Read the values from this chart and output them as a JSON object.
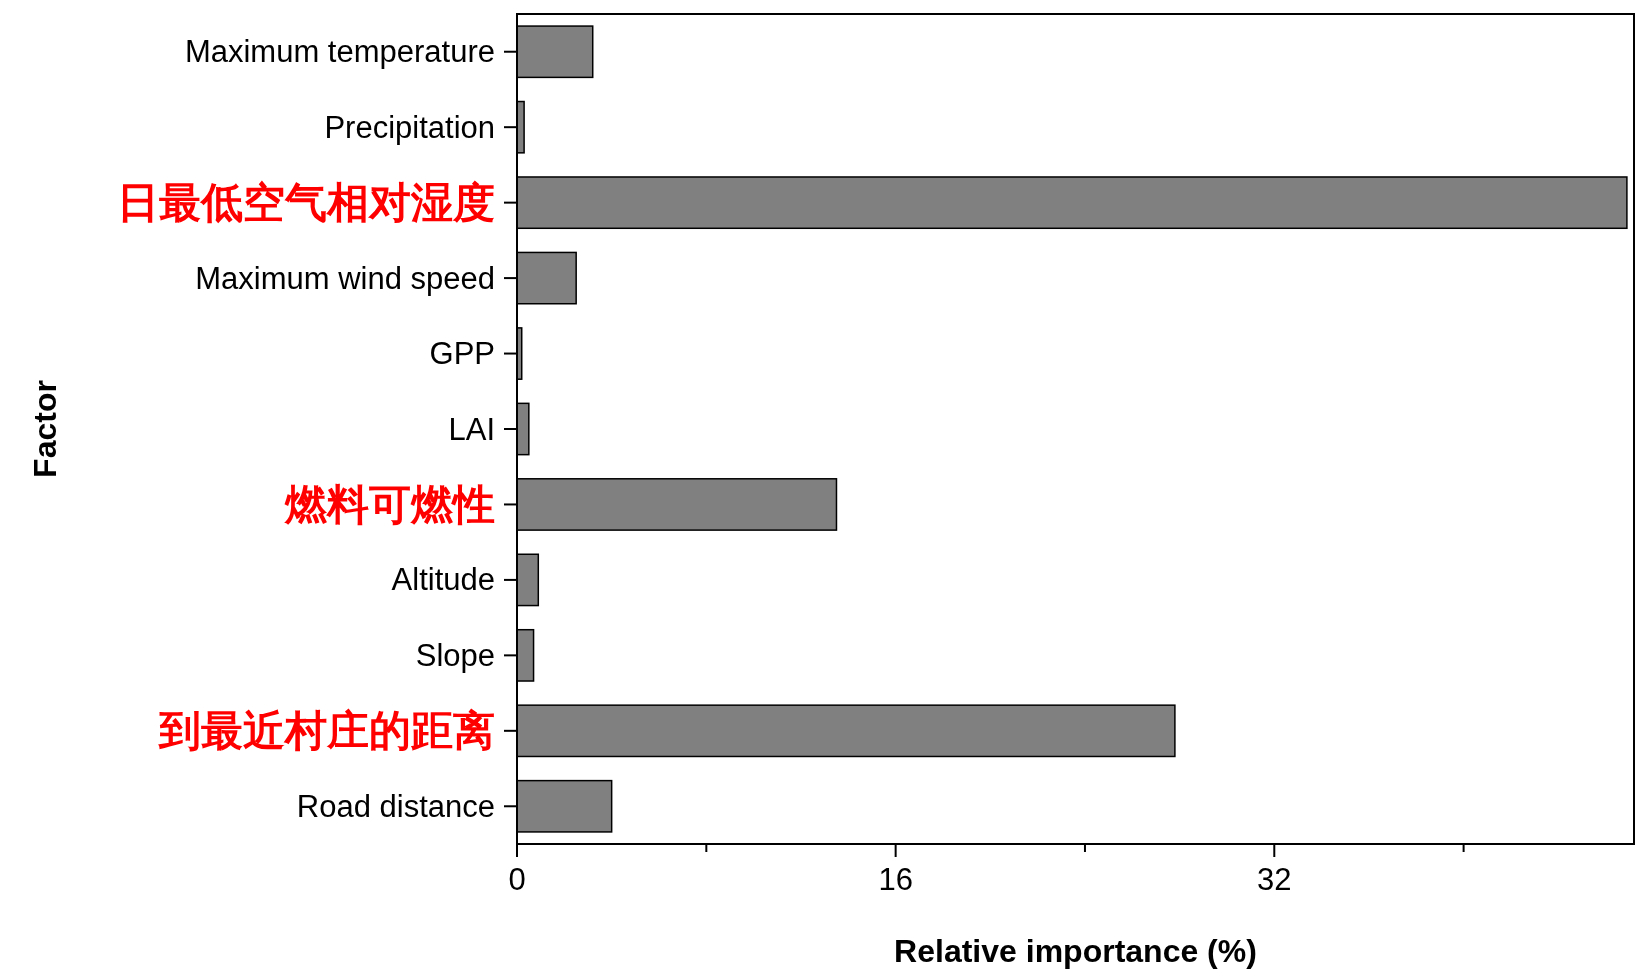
{
  "chart_data": {
    "type": "bar",
    "orientation": "horizontal",
    "xlabel": "Relative importance (%)",
    "ylabel": "Factor",
    "categories": [
      "Maximum temperature",
      "Precipitation",
      "日最低空气相对湿度",
      "Maximum wind speed",
      "GPP",
      "LAI",
      "燃料可燃性",
      "Altitude",
      "Slope",
      "到最近村庄的距离",
      "Road distance"
    ],
    "values": [
      3.2,
      0.3,
      46.9,
      2.5,
      0.2,
      0.5,
      13.5,
      0.9,
      0.7,
      27.8,
      4.0
    ],
    "color": "#808080",
    "xlim": [
      0,
      47.2
    ],
    "xticks": [
      0,
      {
        "value": 8,
        "label": null
      },
      16,
      {
        "value": 24,
        "label": null
      },
      32,
      {
        "value": 40,
        "label": null
      }
    ],
    "grid": false
  }
}
